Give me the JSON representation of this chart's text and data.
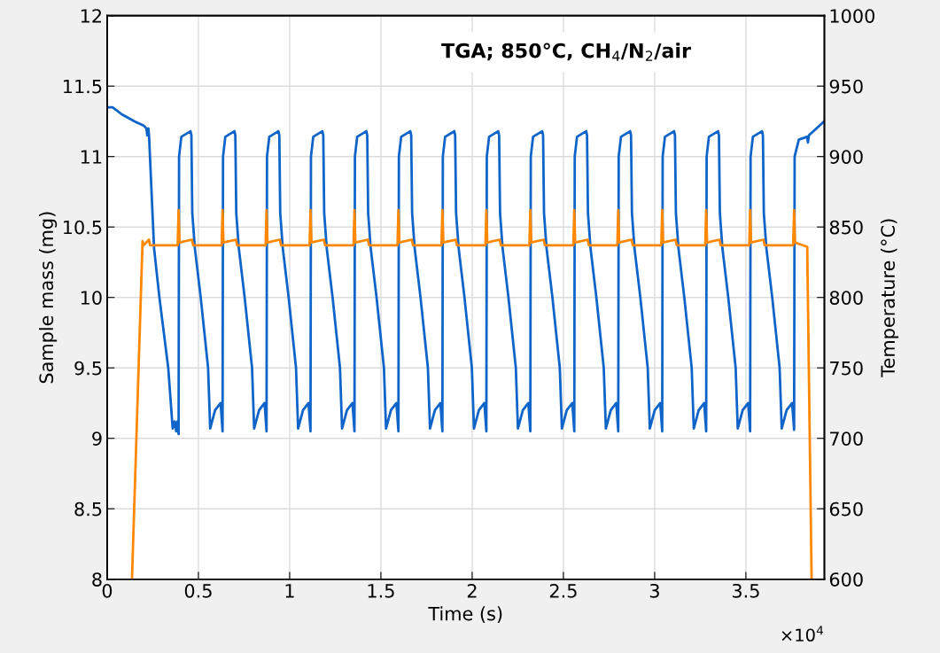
{
  "chart_data": {
    "type": "line",
    "xlabel": "Time (s)",
    "ylabel": "Sample mass (mg)",
    "y2label": "Temperature (°C)",
    "annotations": [
      "TGA; 850°C, CH$_{4}$/N$_{2}$/air",
      "×10$^{4}$"
    ],
    "xlim": [
      0,
      3.93
    ],
    "xticks": [
      0,
      0.5,
      1,
      1.5,
      2,
      2.5,
      3,
      3.5
    ],
    "ylim": [
      8,
      12
    ],
    "yticks": [
      8,
      8.5,
      9,
      9.5,
      10,
      10.5,
      11,
      11.5,
      12
    ],
    "y2lim": [
      600,
      1000
    ],
    "y2ticks": [
      600,
      650,
      700,
      750,
      800,
      850,
      900,
      950,
      1000
    ],
    "grid": true,
    "marker": "none",
    "line_style": "solid",
    "series": [
      {
        "color": "#0e64c8",
        "x": [
          0,
          0.03,
          0.08,
          0.15,
          0.2,
          0.215,
          0.22,
          0.226,
          0.2294,
          0.257,
          0.2862,
          0.3347,
          0.359,
          0.37,
          0.3783,
          0.385,
          0.3915,
          0.394,
          0.4065,
          0.4565,
          0.4615,
          0.4665,
          0.4805,
          0.5125,
          0.553,
          0.5645,
          0.5915,
          0.6215,
          0.6324,
          0.6349,
          0.6474,
          0.6974,
          0.7024,
          0.7074,
          0.7214,
          0.7534,
          0.7939,
          0.8054,
          0.8324,
          0.8624,
          0.8733,
          0.8758,
          0.8883,
          0.9383,
          0.9433,
          0.9483,
          0.9623,
          0.9943,
          1.0348,
          1.0463,
          1.0733,
          1.1033,
          1.1142,
          1.1167,
          1.1292,
          1.1792,
          1.1842,
          1.1892,
          1.2032,
          1.2352,
          1.2757,
          1.2872,
          1.3142,
          1.3442,
          1.3551,
          1.3576,
          1.3701,
          1.4201,
          1.4251,
          1.4301,
          1.4441,
          1.4761,
          1.5166,
          1.5281,
          1.5551,
          1.5851,
          1.596,
          1.5985,
          1.611,
          1.661,
          1.666,
          1.671,
          1.685,
          1.717,
          1.7575,
          1.769,
          1.796,
          1.826,
          1.8369,
          1.8394,
          1.8519,
          1.9019,
          1.9069,
          1.9119,
          1.9259,
          1.9579,
          1.9984,
          2.0099,
          2.0369,
          2.0669,
          2.0778,
          2.0803,
          2.0928,
          2.1428,
          2.1478,
          2.1528,
          2.1668,
          2.1988,
          2.2393,
          2.2508,
          2.2778,
          2.3078,
          2.3187,
          2.3212,
          2.3337,
          2.3837,
          2.3887,
          2.3937,
          2.4077,
          2.4397,
          2.4802,
          2.4917,
          2.5187,
          2.5487,
          2.5596,
          2.5621,
          2.5746,
          2.6246,
          2.6296,
          2.6346,
          2.6486,
          2.6806,
          2.7211,
          2.7326,
          2.7596,
          2.7896,
          2.8005,
          2.803,
          2.8155,
          2.8655,
          2.8705,
          2.8755,
          2.8895,
          2.9215,
          2.962,
          2.9735,
          3.0005,
          3.0305,
          3.0414,
          3.0439,
          3.0564,
          3.1064,
          3.1114,
          3.1164,
          3.1304,
          3.1624,
          3.2029,
          3.2144,
          3.2414,
          3.2714,
          3.2823,
          3.2848,
          3.2973,
          3.3473,
          3.3523,
          3.3573,
          3.3713,
          3.4033,
          3.4438,
          3.4553,
          3.4823,
          3.5123,
          3.5232,
          3.5257,
          3.5382,
          3.5882,
          3.5932,
          3.5982,
          3.6122,
          3.6442,
          3.6847,
          3.6962,
          3.7232,
          3.7532,
          3.7641,
          3.767,
          3.79,
          3.835,
          3.84,
          3.845,
          3.929
        ],
        "values": [
          11.35,
          11.35,
          11.3,
          11.25,
          11.22,
          11.2,
          11.15,
          11.2,
          11.15,
          10.35,
          10.0,
          9.5,
          9.07,
          9.12,
          9.05,
          9.12,
          9.03,
          11.0,
          11.14,
          11.18,
          11.15,
          10.6,
          10.35,
          10.0,
          9.5,
          9.07,
          9.2,
          9.25,
          9.05,
          11.0,
          11.14,
          11.18,
          11.15,
          10.6,
          10.35,
          10.0,
          9.5,
          9.07,
          9.2,
          9.25,
          9.05,
          11.0,
          11.14,
          11.18,
          11.15,
          10.6,
          10.35,
          10.0,
          9.5,
          9.07,
          9.2,
          9.25,
          9.05,
          11.0,
          11.14,
          11.18,
          11.15,
          10.6,
          10.35,
          10.0,
          9.5,
          9.07,
          9.2,
          9.25,
          9.05,
          11.0,
          11.14,
          11.18,
          11.15,
          10.6,
          10.35,
          10.0,
          9.5,
          9.07,
          9.2,
          9.25,
          9.05,
          11.0,
          11.14,
          11.18,
          11.15,
          10.6,
          10.35,
          10.0,
          9.5,
          9.07,
          9.2,
          9.25,
          9.05,
          11.0,
          11.14,
          11.18,
          11.15,
          10.6,
          10.35,
          10.0,
          9.5,
          9.07,
          9.2,
          9.25,
          9.05,
          11.0,
          11.14,
          11.18,
          11.15,
          10.6,
          10.35,
          10.0,
          9.5,
          9.07,
          9.2,
          9.25,
          9.05,
          11.0,
          11.14,
          11.18,
          11.15,
          10.6,
          10.35,
          10.0,
          9.5,
          9.07,
          9.2,
          9.25,
          9.05,
          11.0,
          11.14,
          11.18,
          11.15,
          10.6,
          10.35,
          10.0,
          9.5,
          9.07,
          9.2,
          9.25,
          9.05,
          11.0,
          11.14,
          11.18,
          11.15,
          10.6,
          10.35,
          10.0,
          9.5,
          9.07,
          9.2,
          9.25,
          9.05,
          11.0,
          11.14,
          11.18,
          11.15,
          10.6,
          10.35,
          10.0,
          9.5,
          9.07,
          9.2,
          9.25,
          9.05,
          11.0,
          11.14,
          11.18,
          11.15,
          10.6,
          10.35,
          10.0,
          9.5,
          9.07,
          9.2,
          9.25,
          9.05,
          11.0,
          11.14,
          11.18,
          11.15,
          10.6,
          10.35,
          10.0,
          9.5,
          9.07,
          9.2,
          9.25,
          9.06,
          11.0,
          11.12,
          11.14,
          11.1,
          11.15,
          11.25
        ]
      },
      {
        "color": "#ff8800",
        "axis": "y2",
        "x": [
          0.136,
          0.194,
          0.2,
          0.229,
          0.235,
          0.3865,
          0.3915,
          0.3965,
          0.4645,
          0.4715,
          0.6274,
          0.6324,
          0.6374,
          0.7054,
          0.7124,
          0.8683,
          0.8733,
          0.8783,
          0.9463,
          0.9533,
          1.1092,
          1.1142,
          1.1192,
          1.1872,
          1.1942,
          1.3501,
          1.3551,
          1.3601,
          1.4281,
          1.4351,
          1.591,
          1.596,
          1.601,
          1.669,
          1.676,
          1.8319,
          1.8369,
          1.8419,
          1.9099,
          1.9169,
          2.0728,
          2.0778,
          2.0828,
          2.1508,
          2.1578,
          2.3137,
          2.3187,
          2.3237,
          2.3917,
          2.3987,
          2.5546,
          2.5596,
          2.5646,
          2.6326,
          2.6396,
          2.7955,
          2.8005,
          2.8055,
          2.8735,
          2.8805,
          3.0364,
          3.0414,
          3.0464,
          3.1144,
          3.1214,
          3.2773,
          3.2823,
          3.2873,
          3.3553,
          3.3623,
          3.5182,
          3.5232,
          3.5282,
          3.5962,
          3.6032,
          3.7591,
          3.7641,
          3.7691,
          3.836,
          3.86
        ],
        "values": [
          600,
          840,
          837,
          841,
          837,
          837,
          862,
          839,
          841,
          837,
          837,
          862,
          839,
          841,
          837,
          837,
          862,
          839,
          841,
          837,
          837,
          862,
          839,
          841,
          837,
          837,
          862,
          839,
          841,
          837,
          837,
          862,
          839,
          841,
          837,
          837,
          862,
          839,
          841,
          837,
          837,
          862,
          839,
          841,
          837,
          837,
          862,
          839,
          841,
          837,
          837,
          862,
          839,
          841,
          837,
          837,
          862,
          839,
          841,
          837,
          837,
          862,
          839,
          841,
          837,
          837,
          862,
          839,
          841,
          837,
          837,
          862,
          839,
          841,
          837,
          837,
          862,
          839,
          836,
          600
        ]
      }
    ]
  }
}
